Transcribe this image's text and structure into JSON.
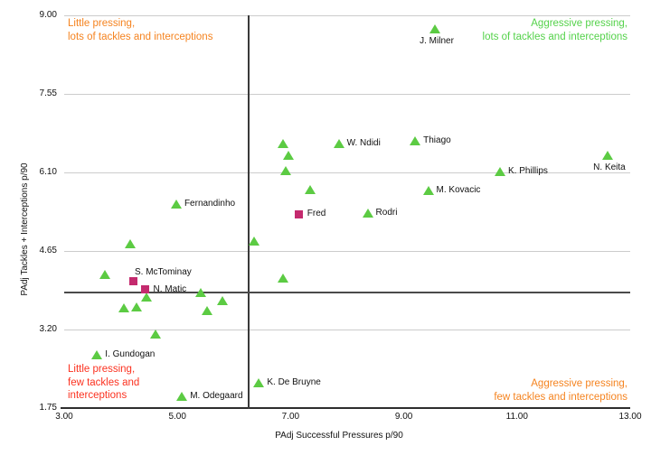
{
  "chart_data": {
    "type": "scatter",
    "title": "",
    "xlabel": "PAdj Successful Pressures p/90",
    "ylabel": "PAdj Tackles + Interceptions p/90",
    "xlim": [
      3.0,
      13.0
    ],
    "ylim": [
      1.75,
      9.0
    ],
    "x_ticks": [
      "3.00",
      "5.00",
      "7.00",
      "9.00",
      "11.00",
      "13.00"
    ],
    "y_ticks": [
      "9.00",
      "7.55",
      "6.10",
      "4.65",
      "3.20",
      "1.75"
    ],
    "grid": "horizontal-only",
    "legend": "none",
    "mean_line_x": 6.26,
    "mean_line_y": 3.88,
    "colors": {
      "triangle_marker": "#5ccb43",
      "square_marker": "#c42a6e",
      "orange_text": "#f5831f",
      "red_text": "#fb3220",
      "green_text": "#54d24a",
      "grid": "#cccccc",
      "axis": "#2e2e2e"
    },
    "series": [
      {
        "name": "green-triangle-players",
        "marker": "triangle",
        "color": "#5ccb43",
        "points": [
          {
            "x": 9.55,
            "y": 8.75,
            "label": "J. Milner",
            "label_pos": "below"
          },
          {
            "x": 12.6,
            "y": 6.42,
            "label": "N. Keita",
            "label_pos": "below"
          },
          {
            "x": 10.7,
            "y": 6.12,
            "label": "K. Phillips",
            "label_pos": "right"
          },
          {
            "x": 9.2,
            "y": 6.68,
            "label": "Thiago",
            "label_pos": "right"
          },
          {
            "x": 7.85,
            "y": 6.64,
            "label": "W. Ndidi",
            "label_pos": "right"
          },
          {
            "x": 9.43,
            "y": 5.76,
            "label": "M. Kovacic",
            "label_pos": "right"
          },
          {
            "x": 8.36,
            "y": 5.35,
            "label": "Rodri",
            "label_pos": "right"
          },
          {
            "x": 4.98,
            "y": 5.52,
            "label": "Fernandinho",
            "label_pos": "right"
          },
          {
            "x": 3.58,
            "y": 2.73,
            "label": "I. Gundogan",
            "label_pos": "right"
          },
          {
            "x": 5.08,
            "y": 1.96,
            "label": "M. Odegaard",
            "label_pos": "right"
          },
          {
            "x": 6.44,
            "y": 2.21,
            "label": "K. De Bruyne",
            "label_pos": "right"
          },
          {
            "x": 6.86,
            "y": 6.64,
            "label": null
          },
          {
            "x": 6.96,
            "y": 6.41,
            "label": null
          },
          {
            "x": 6.91,
            "y": 6.14,
            "label": null
          },
          {
            "x": 7.34,
            "y": 5.78,
            "label": null
          },
          {
            "x": 6.35,
            "y": 4.83,
            "label": null
          },
          {
            "x": 6.86,
            "y": 4.15,
            "label": null
          },
          {
            "x": 4.17,
            "y": 4.79,
            "label": null
          },
          {
            "x": 3.72,
            "y": 4.21,
            "label": null
          },
          {
            "x": 4.46,
            "y": 3.8,
            "label": null
          },
          {
            "x": 4.05,
            "y": 3.6,
            "label": null
          },
          {
            "x": 4.28,
            "y": 3.62,
            "label": null
          },
          {
            "x": 5.42,
            "y": 3.88,
            "label": null
          },
          {
            "x": 5.8,
            "y": 3.74,
            "label": null
          },
          {
            "x": 5.52,
            "y": 3.55,
            "label": null
          },
          {
            "x": 4.61,
            "y": 3.12,
            "label": null
          }
        ]
      },
      {
        "name": "magenta-square-players",
        "marker": "square",
        "color": "#c42a6e",
        "points": [
          {
            "x": 7.15,
            "y": 5.33,
            "label": "Fred",
            "label_pos": "right"
          },
          {
            "x": 4.23,
            "y": 4.1,
            "label": "S. McTominay",
            "label_pos": "above-right"
          },
          {
            "x": 4.43,
            "y": 3.94,
            "label": "N. Matic",
            "label_pos": "right"
          }
        ]
      }
    ],
    "quadrant_labels": [
      {
        "id": "top-left",
        "text": "Little pressing,\nlots of tackles and interceptions",
        "color": "#f5831f",
        "align": "left"
      },
      {
        "id": "top-right",
        "text": "Aggressive pressing,\nlots of tackles and interceptions",
        "color": "#54d24a",
        "align": "right"
      },
      {
        "id": "bottom-left",
        "text": "Little pressing,\nfew tackles and\ninterceptions",
        "color": "#fb3220",
        "align": "left"
      },
      {
        "id": "bottom-right",
        "text": "Aggressive pressing,\nfew tackles and interceptions",
        "color": "#f5831f",
        "align": "right"
      }
    ]
  }
}
